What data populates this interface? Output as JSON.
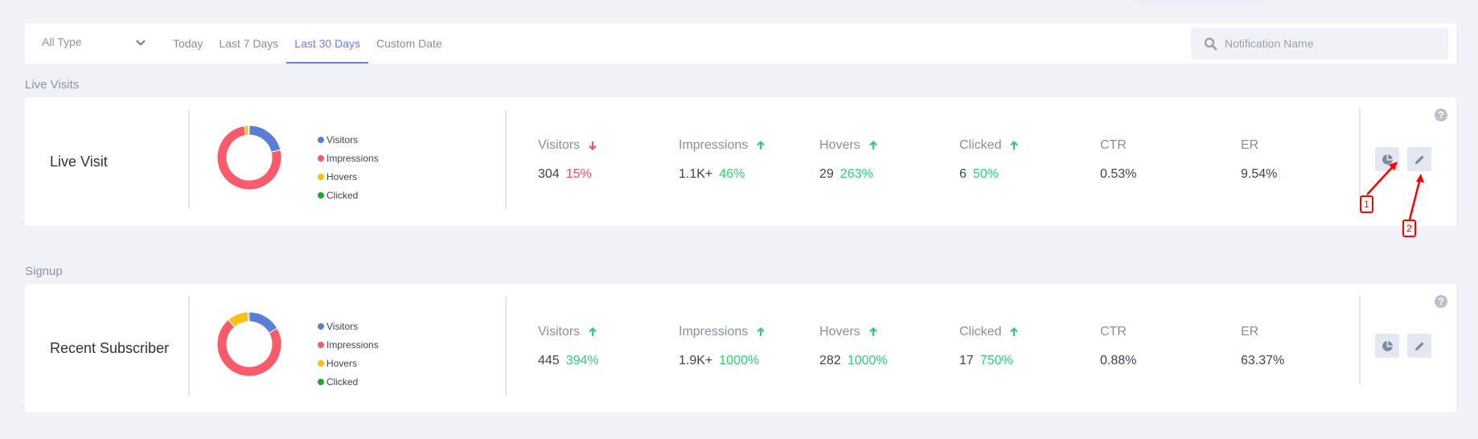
{
  "filter_bar": {
    "type_select": {
      "selected": "All Type",
      "icon": "chevron-down-icon"
    },
    "tabs": [
      {
        "label": "Today",
        "active": false
      },
      {
        "label": "Last 7 Days",
        "active": false
      },
      {
        "label": "Last 30 Days",
        "active": true
      },
      {
        "label": "Custom Date",
        "active": false
      }
    ],
    "search": {
      "placeholder": "Notification Name",
      "value": "",
      "icon": "search-icon"
    }
  },
  "colors": {
    "accent": "#6b7ff0",
    "visitors": "#5a7ed8",
    "impressions": "#f95b6a",
    "hovers": "#fdbe10",
    "clicked": "#23a530",
    "up": "#2fcf73",
    "down": "#f0516a"
  },
  "legend": [
    "Visitors",
    "Impressions",
    "Hovers",
    "Clicked"
  ],
  "sections": [
    {
      "title": "Live Visits",
      "card": {
        "name": "Live Visit",
        "metrics": [
          {
            "label": "Visitors",
            "value": "304",
            "change": "15%",
            "trend": "down"
          },
          {
            "label": "Impressions",
            "value": "1.1K+",
            "change": "46%",
            "trend": "up"
          },
          {
            "label": "Hovers",
            "value": "29",
            "change": "263%",
            "trend": "up"
          },
          {
            "label": "Clicked",
            "value": "6",
            "change": "50%",
            "trend": "up"
          },
          {
            "label": "CTR",
            "value": "0.53%"
          },
          {
            "label": "ER",
            "value": "9.54%"
          }
        ],
        "actions": {
          "help": "?",
          "stats_icon": "pie-chart-icon",
          "edit_icon": "pencil-icon"
        }
      }
    },
    {
      "title": "Signup",
      "card": {
        "name": "Recent Subscriber",
        "metrics": [
          {
            "label": "Visitors",
            "value": "445",
            "change": "394%",
            "trend": "up"
          },
          {
            "label": "Impressions",
            "value": "1.9K+",
            "change": "1000%",
            "trend": "up"
          },
          {
            "label": "Hovers",
            "value": "282",
            "change": "1000%",
            "trend": "up"
          },
          {
            "label": "Clicked",
            "value": "17",
            "change": "750%",
            "trend": "up"
          },
          {
            "label": "CTR",
            "value": "0.88%"
          },
          {
            "label": "ER",
            "value": "63.37%"
          }
        ],
        "actions": {
          "help": "?",
          "stats_icon": "pie-chart-icon",
          "edit_icon": "pencil-icon"
        }
      }
    }
  ],
  "annotations": [
    {
      "label": "1"
    },
    {
      "label": "2"
    }
  ],
  "chart_data": [
    {
      "type": "pie",
      "title": "Live Visit",
      "categories": [
        "Visitors",
        "Impressions",
        "Hovers",
        "Clicked"
      ],
      "values": [
        304,
        1100,
        29,
        6
      ]
    },
    {
      "type": "pie",
      "title": "Recent Subscriber",
      "categories": [
        "Visitors",
        "Impressions",
        "Hovers",
        "Clicked"
      ],
      "values": [
        445,
        1900,
        282,
        17
      ]
    }
  ]
}
